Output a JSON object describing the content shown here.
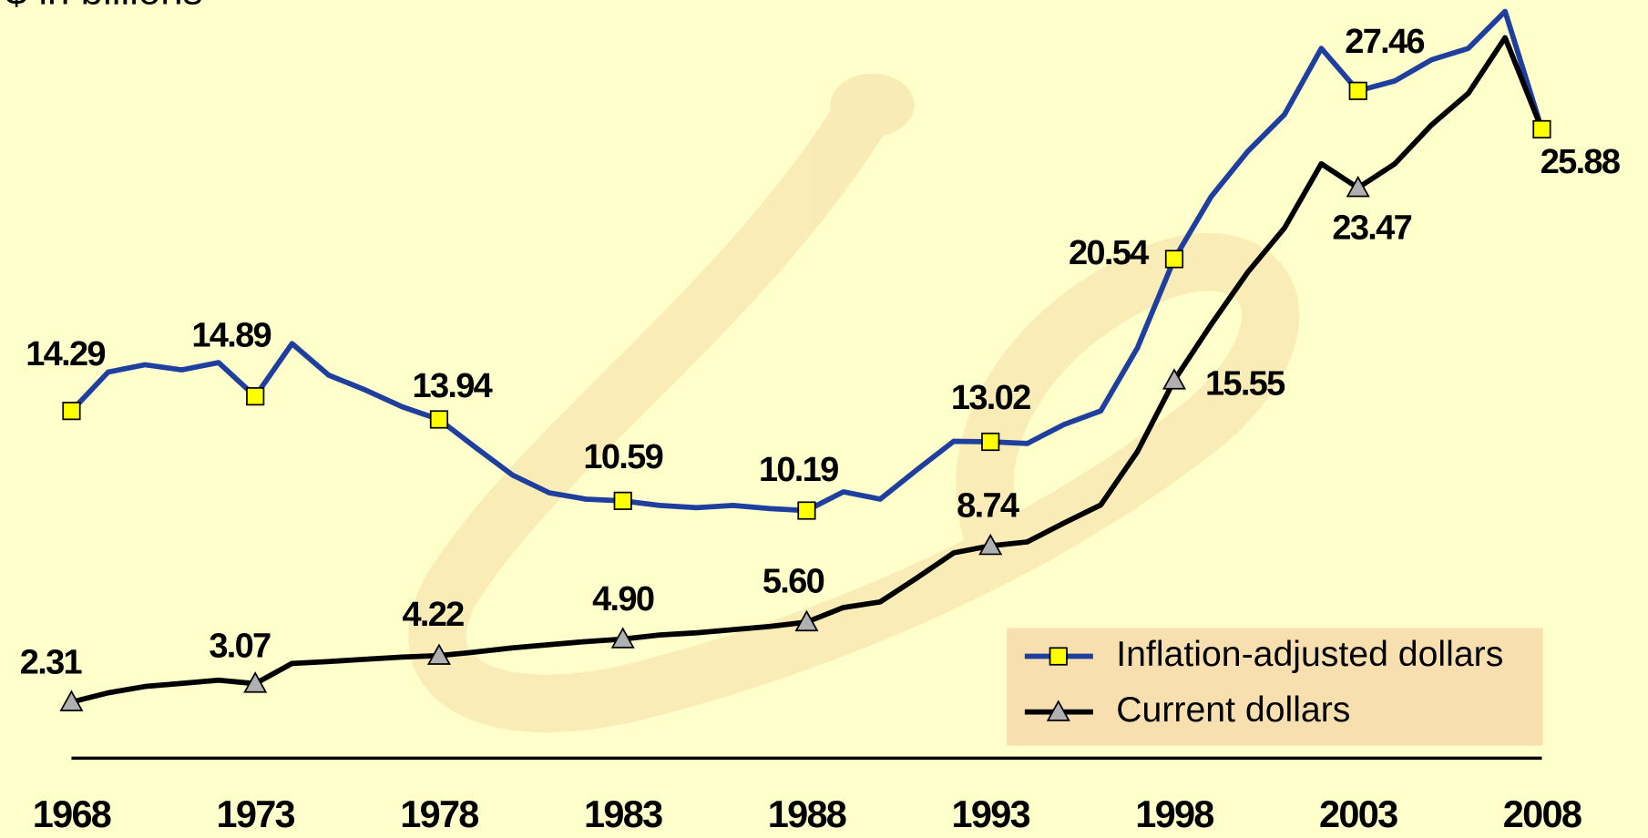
{
  "chart_data": {
    "type": "line",
    "title": "$ in billions",
    "x": [
      1968,
      1969,
      1970,
      1971,
      1972,
      1973,
      1974,
      1975,
      1976,
      1977,
      1978,
      1979,
      1980,
      1981,
      1982,
      1983,
      1984,
      1985,
      1986,
      1987,
      1988,
      1989,
      1990,
      1991,
      1992,
      1993,
      1994,
      1995,
      1996,
      1997,
      1998,
      1999,
      2000,
      2001,
      2002,
      2003,
      2004,
      2005,
      2006,
      2007,
      2008
    ],
    "xlim": [
      1968,
      2008
    ],
    "xticks": [
      1968,
      1973,
      1978,
      1983,
      1988,
      1993,
      1998,
      2003,
      2008
    ],
    "ylim": [
      0,
      31.2
    ],
    "legend": "lower right",
    "series": [
      {
        "name": "Inflation-adjusted dollars",
        "color": "#1f3f9f",
        "marker": "square",
        "marker_color": "#ffff00",
        "values": [
          14.29,
          15.89,
          16.19,
          15.98,
          16.28,
          14.89,
          17.06,
          15.76,
          15.15,
          14.46,
          13.94,
          12.78,
          11.65,
          10.92,
          10.66,
          10.59,
          10.4,
          10.31,
          10.4,
          10.27,
          10.19,
          10.96,
          10.66,
          11.87,
          13.04,
          13.02,
          12.95,
          13.73,
          14.29,
          16.89,
          20.54,
          23.1,
          24.97,
          26.49,
          29.21,
          27.46,
          27.87,
          28.74,
          29.21,
          30.73,
          25.88
        ],
        "value_labels": [
          "14.29",
          null,
          null,
          null,
          null,
          "14.89",
          null,
          null,
          null,
          null,
          "13.94",
          null,
          null,
          null,
          null,
          "10.59",
          null,
          null,
          null,
          null,
          "10.19",
          null,
          null,
          null,
          null,
          "13.02",
          null,
          null,
          null,
          null,
          "20.54",
          null,
          null,
          null,
          null,
          "27.46",
          null,
          null,
          null,
          null,
          "25.88"
        ]
      },
      {
        "name": "Current dollars",
        "color": "#000000",
        "marker": "triangle",
        "marker_color": "#b0b0b0",
        "values": [
          2.31,
          2.69,
          2.95,
          3.08,
          3.21,
          3.07,
          3.9,
          3.98,
          4.07,
          4.16,
          4.22,
          4.37,
          4.54,
          4.67,
          4.8,
          4.9,
          5.07,
          5.16,
          5.29,
          5.42,
          5.6,
          6.2,
          6.43,
          7.42,
          8.45,
          8.74,
          8.9,
          9.68,
          10.42,
          12.62,
          15.55,
          17.84,
          20.0,
          21.82,
          24.46,
          23.47,
          24.46,
          26.06,
          27.36,
          29.65,
          25.88
        ],
        "value_labels": [
          "2.31",
          null,
          null,
          null,
          null,
          "3.07",
          null,
          null,
          null,
          null,
          "4.22",
          null,
          null,
          null,
          null,
          "4.90",
          null,
          null,
          null,
          null,
          "5.60",
          null,
          null,
          null,
          null,
          "8.74",
          null,
          null,
          null,
          null,
          "15.55",
          null,
          null,
          null,
          null,
          "23.47",
          null,
          null,
          null,
          null,
          null
        ]
      }
    ]
  }
}
